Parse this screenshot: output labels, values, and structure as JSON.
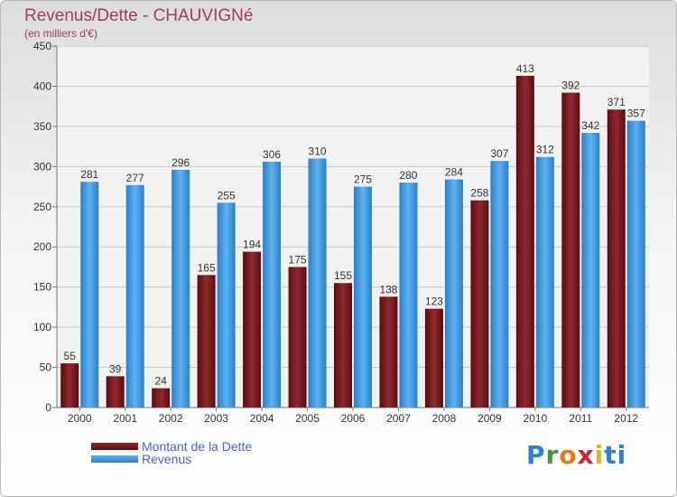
{
  "chart_data": {
    "type": "bar",
    "title": "Revenus/Dette - CHAUVIGNé",
    "subtitle": "(en milliers d'€)",
    "categories": [
      "2000",
      "2001",
      "2002",
      "2003",
      "2004",
      "2005",
      "2006",
      "2007",
      "2008",
      "2009",
      "2010",
      "2011",
      "2012"
    ],
    "series": [
      {
        "name": "Montant de la Dette",
        "color": "#7a1518",
        "values": [
          55,
          39,
          24,
          165,
          194,
          175,
          155,
          138,
          123,
          258,
          413,
          392,
          371
        ]
      },
      {
        "name": "Revenus",
        "color": "#3a96e0",
        "values": [
          281,
          277,
          296,
          255,
          306,
          310,
          275,
          280,
          284,
          307,
          312,
          342,
          357
        ]
      }
    ],
    "ylim": [
      0,
      450
    ],
    "yticks": [
      0,
      50,
      100,
      150,
      200,
      250,
      300,
      350,
      400,
      450
    ],
    "grid": true,
    "legend_position": "bottom-left"
  },
  "logo": {
    "text": "Proxiti",
    "letters": [
      "P",
      "r",
      "o",
      "x",
      "i",
      "ti"
    ]
  }
}
